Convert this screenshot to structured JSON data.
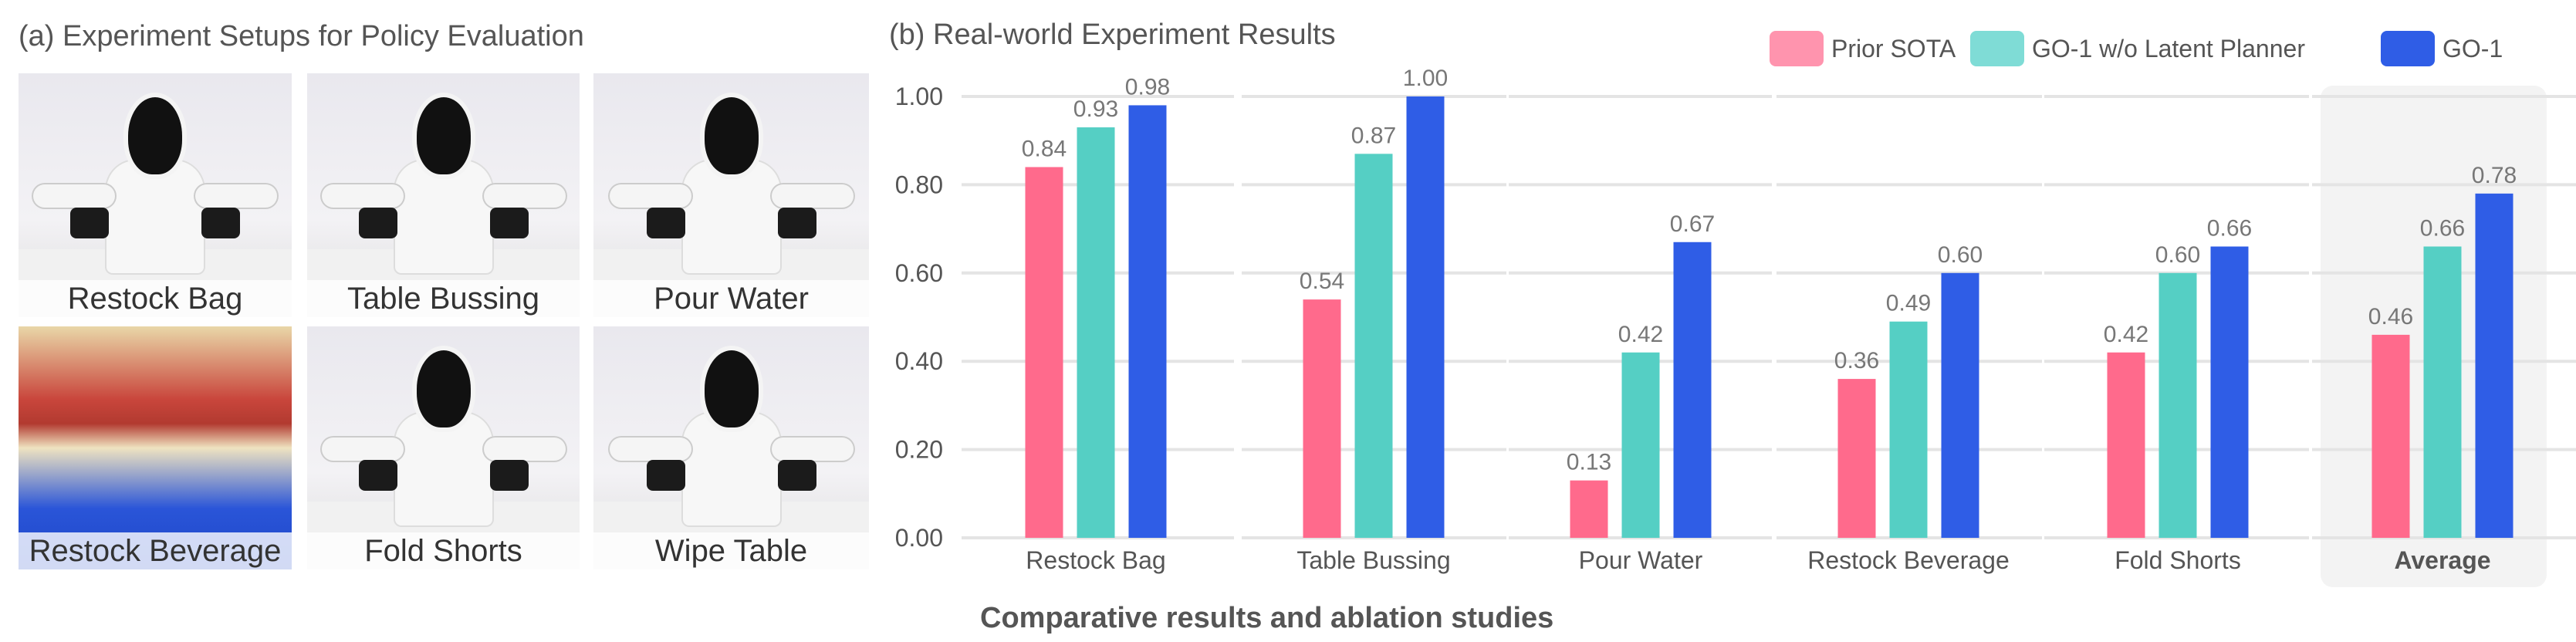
{
  "left_panel": {
    "title": "(a) Experiment Setups for Policy Evaluation",
    "photos": [
      {
        "label": "Restock Bag"
      },
      {
        "label": "Table Bussing"
      },
      {
        "label": "Pour Water"
      },
      {
        "label": "Restock Beverage"
      },
      {
        "label": "Fold Shorts"
      },
      {
        "label": "Wipe Table"
      }
    ]
  },
  "caption": "Comparative results and ablation studies",
  "chart_data": {
    "type": "bar",
    "title": "(b) Real-world Experiment Results",
    "xlabel": "",
    "ylabel": "",
    "ylim": [
      0,
      1.0
    ],
    "yticks": [
      "0.00",
      "0.20",
      "0.40",
      "0.60",
      "0.80",
      "1.00"
    ],
    "grid": true,
    "legend_position": "top-right",
    "categories": [
      "Restock Bag",
      "Table Bussing",
      "Pour Water",
      "Restock Beverage",
      "Fold Shorts",
      "Average"
    ],
    "highlighted_category": "Average",
    "series": [
      {
        "name": "Prior SOTA",
        "color": "#ff6a8c",
        "legend_color": "#ff94ae",
        "values": [
          0.84,
          0.54,
          0.13,
          0.36,
          0.42,
          0.46
        ],
        "labels": [
          "0.84",
          "0.54",
          "0.13",
          "0.36",
          "0.42",
          "0.46"
        ]
      },
      {
        "name": "GO-1 w/o Latent Planner",
        "color": "#55cfc4",
        "legend_color": "#7fdcd6",
        "values": [
          0.93,
          0.87,
          0.42,
          0.49,
          0.6,
          0.66
        ],
        "labels": [
          "0.93",
          "0.87",
          "0.42",
          "0.49",
          "0.60",
          "0.66"
        ]
      },
      {
        "name": "GO-1",
        "color": "#2f5de6",
        "legend_color": "#2f5de6",
        "values": [
          0.98,
          1.0,
          0.67,
          0.6,
          0.66,
          0.78
        ],
        "labels": [
          "0.98",
          "1.00",
          "0.67",
          "0.60",
          "0.66",
          "0.78"
        ]
      }
    ]
  }
}
